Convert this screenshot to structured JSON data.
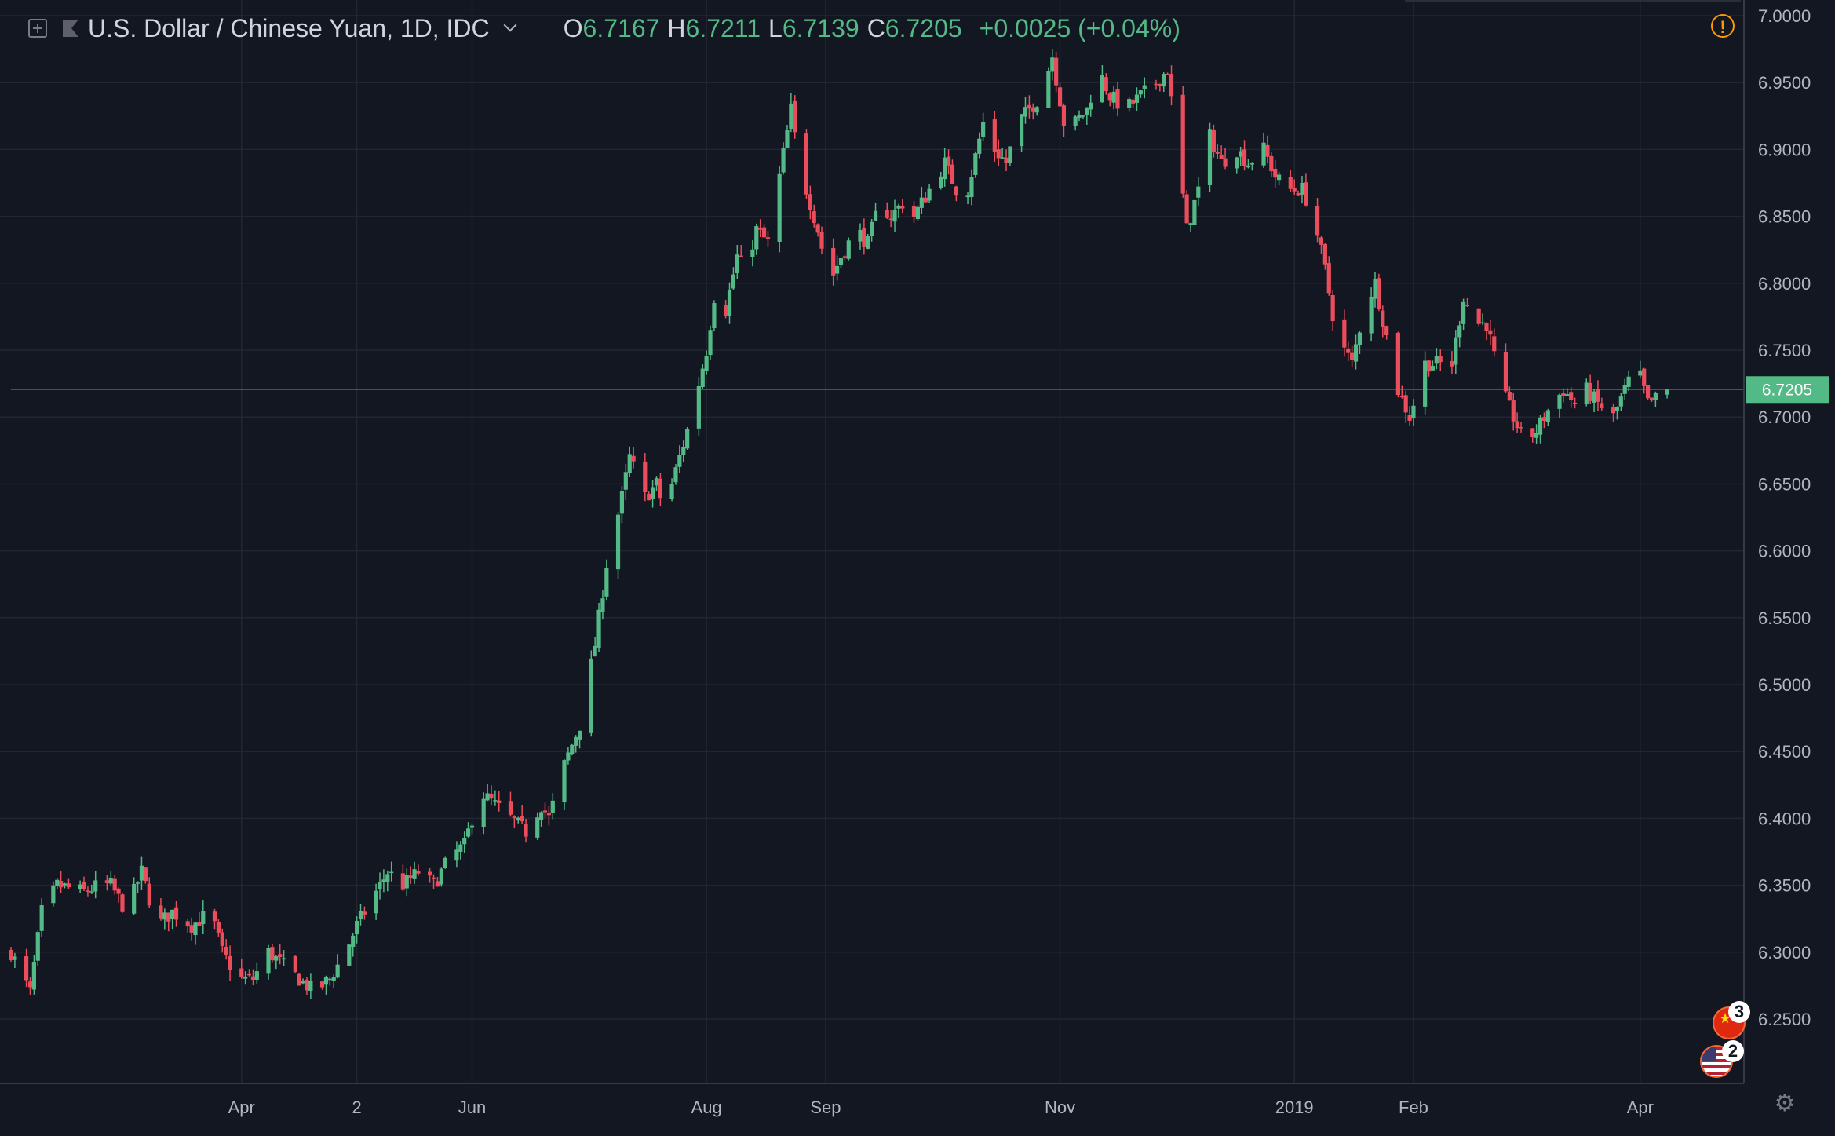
{
  "legend": {
    "symbol": "U.S. Dollar / Chinese Yuan, 1D, IDC",
    "open_label": "O",
    "open": "6.7167",
    "high_label": "H",
    "high": "6.7211",
    "low_label": "L",
    "low": "6.7139",
    "close_label": "C",
    "close": "6.7205",
    "change": "+0.0025 (+0.04%)"
  },
  "icons": [
    "plus-square-icon",
    "flag-icon",
    "chevron-down-icon",
    "warning-icon",
    "china-flag-icon",
    "us-flag-icon",
    "gear-icon"
  ],
  "events": {
    "china_count": "3",
    "us_count": "2"
  },
  "colors": {
    "background": "#131722",
    "grid": "#232632",
    "up": "#53b987",
    "down": "#eb4d5c",
    "text": "#b2b5be",
    "last_price": "#53b987",
    "warning": "#ff9800"
  },
  "chart_data": {
    "type": "candlestick",
    "title": "",
    "xlabel": "",
    "ylabel": "",
    "ylim": [
      6.2,
      7.0
    ],
    "y_ticks": [
      "7.0000",
      "6.9500",
      "6.9000",
      "6.8500",
      "6.8000",
      "6.7500",
      "6.7000",
      "6.6500",
      "6.6000",
      "6.5500",
      "6.5000",
      "6.4500",
      "6.4000",
      "6.3500",
      "6.3000",
      "6.2500"
    ],
    "x_ticks": [
      {
        "label": "Apr",
        "date": "2018-04-02"
      },
      {
        "label": "2",
        "date": "2018-05-02"
      },
      {
        "label": "Jun",
        "date": "2018-06-01"
      },
      {
        "label": "Aug",
        "date": "2018-08-01"
      },
      {
        "label": "Sep",
        "date": "2018-09-01"
      },
      {
        "label": "Nov",
        "date": "2018-11-01"
      },
      {
        "label": "2019",
        "date": "2019-01-01"
      },
      {
        "label": "Feb",
        "date": "2019-02-01"
      },
      {
        "label": "Apr",
        "date": "2019-04-01"
      }
    ],
    "x_range": [
      "2018-02-01",
      "2019-04-28"
    ],
    "grid": true,
    "last_price": "6.7205",
    "price_path": [
      [
        "2018-02-01",
        6.3
      ],
      [
        "2018-02-06",
        6.27
      ],
      [
        "2018-02-09",
        6.33
      ],
      [
        "2018-02-13",
        6.35
      ],
      [
        "2018-02-20",
        6.345
      ],
      [
        "2018-02-24",
        6.35
      ],
      [
        "2018-02-27",
        6.35
      ],
      [
        "2018-03-03",
        6.33
      ],
      [
        "2018-03-07",
        6.36
      ],
      [
        "2018-03-11",
        6.32
      ],
      [
        "2018-03-15",
        6.33
      ],
      [
        "2018-03-20",
        6.32
      ],
      [
        "2018-03-25",
        6.33
      ],
      [
        "2018-03-28",
        6.3
      ],
      [
        "2018-04-01",
        6.28
      ],
      [
        "2018-04-05",
        6.28
      ],
      [
        "2018-04-09",
        6.3
      ],
      [
        "2018-04-13",
        6.29
      ],
      [
        "2018-04-17",
        6.28
      ],
      [
        "2018-04-21",
        6.27
      ],
      [
        "2018-04-25",
        6.28
      ],
      [
        "2018-04-29",
        6.3
      ],
      [
        "2018-05-02",
        6.32
      ],
      [
        "2018-05-06",
        6.34
      ],
      [
        "2018-05-10",
        6.36
      ],
      [
        "2018-05-14",
        6.35
      ],
      [
        "2018-05-18",
        6.36
      ],
      [
        "2018-05-22",
        6.35
      ],
      [
        "2018-05-26",
        6.37
      ],
      [
        "2018-05-30",
        6.38
      ],
      [
        "2018-06-03",
        6.42
      ],
      [
        "2018-06-07",
        6.41
      ],
      [
        "2018-06-11",
        6.4
      ],
      [
        "2018-06-15",
        6.39
      ],
      [
        "2018-06-19",
        6.41
      ],
      [
        "2018-06-21",
        6.4
      ],
      [
        "2018-06-25",
        6.44
      ],
      [
        "2018-06-29",
        6.47
      ],
      [
        "2018-07-03",
        6.53
      ],
      [
        "2018-07-06",
        6.59
      ],
      [
        "2018-07-10",
        6.64
      ],
      [
        "2018-07-12",
        6.67
      ],
      [
        "2018-07-16",
        6.64
      ],
      [
        "2018-07-19",
        6.65
      ],
      [
        "2018-07-21",
        6.63
      ],
      [
        "2018-07-24",
        6.66
      ],
      [
        "2018-07-28",
        6.7
      ],
      [
        "2018-08-01",
        6.75
      ],
      [
        "2018-08-03",
        6.79
      ],
      [
        "2018-08-06",
        6.78
      ],
      [
        "2018-08-09",
        6.82
      ],
      [
        "2018-08-11",
        6.81
      ],
      [
        "2018-08-14",
        6.84
      ],
      [
        "2018-08-17",
        6.83
      ],
      [
        "2018-08-20",
        6.88
      ],
      [
        "2018-08-23",
        6.93
      ],
      [
        "2018-08-25",
        6.89
      ],
      [
        "2018-08-28",
        6.86
      ],
      [
        "2018-08-30",
        6.84
      ],
      [
        "2018-09-02",
        6.8
      ],
      [
        "2018-09-05",
        6.82
      ],
      [
        "2018-09-09",
        6.84
      ],
      [
        "2018-09-12",
        6.83
      ],
      [
        "2018-09-15",
        6.86
      ],
      [
        "2018-09-18",
        6.85
      ],
      [
        "2018-09-21",
        6.86
      ],
      [
        "2018-09-24",
        6.85
      ],
      [
        "2018-09-28",
        6.87
      ],
      [
        "2018-10-02",
        6.89
      ],
      [
        "2018-10-05",
        6.87
      ],
      [
        "2018-10-08",
        6.87
      ],
      [
        "2018-10-12",
        6.92
      ],
      [
        "2018-10-15",
        6.9
      ],
      [
        "2018-10-18",
        6.89
      ],
      [
        "2018-10-21",
        6.92
      ],
      [
        "2018-10-24",
        6.93
      ],
      [
        "2018-10-27",
        6.94
      ],
      [
        "2018-10-30",
        6.97
      ],
      [
        "2018-11-02",
        6.92
      ],
      [
        "2018-11-05",
        6.92
      ],
      [
        "2018-11-08",
        6.93
      ],
      [
        "2018-11-11",
        6.96
      ],
      [
        "2018-11-14",
        6.94
      ],
      [
        "2018-11-18",
        6.93
      ],
      [
        "2018-11-22",
        6.94
      ],
      [
        "2018-11-26",
        6.95
      ],
      [
        "2018-11-29",
        6.96
      ],
      [
        "2018-12-02",
        6.89
      ],
      [
        "2018-12-04",
        6.84
      ],
      [
        "2018-12-07",
        6.87
      ],
      [
        "2018-12-10",
        6.91
      ],
      [
        "2018-12-13",
        6.89
      ],
      [
        "2018-12-17",
        6.9
      ],
      [
        "2018-12-20",
        6.89
      ],
      [
        "2018-12-24",
        6.9
      ],
      [
        "2018-12-27",
        6.88
      ],
      [
        "2018-12-30",
        6.87
      ],
      [
        "2019-01-03",
        6.87
      ],
      [
        "2019-01-06",
        6.85
      ],
      [
        "2019-01-09",
        6.81
      ],
      [
        "2019-01-12",
        6.76
      ],
      [
        "2019-01-16",
        6.74
      ],
      [
        "2019-01-19",
        6.78
      ],
      [
        "2019-01-22",
        6.8
      ],
      [
        "2019-01-25",
        6.76
      ],
      [
        "2019-01-28",
        6.72
      ],
      [
        "2019-01-31",
        6.7
      ],
      [
        "2019-02-04",
        6.74
      ],
      [
        "2019-02-11",
        6.74
      ],
      [
        "2019-02-14",
        6.79
      ],
      [
        "2019-02-17",
        6.77
      ],
      [
        "2019-02-20",
        6.77
      ],
      [
        "2019-02-24",
        6.72
      ],
      [
        "2019-02-27",
        6.7
      ],
      [
        "2019-03-02",
        6.68
      ],
      [
        "2019-03-05",
        6.69
      ],
      [
        "2019-03-09",
        6.71
      ],
      [
        "2019-03-12",
        6.72
      ],
      [
        "2019-03-15",
        6.71
      ],
      [
        "2019-03-18",
        6.72
      ],
      [
        "2019-03-21",
        6.71
      ],
      [
        "2019-03-25",
        6.7
      ],
      [
        "2019-03-28",
        6.72
      ],
      [
        "2019-03-31",
        6.74
      ],
      [
        "2019-04-03",
        6.71
      ],
      [
        "2019-04-06",
        6.715
      ],
      [
        "2019-04-08",
        6.7205
      ]
    ]
  }
}
